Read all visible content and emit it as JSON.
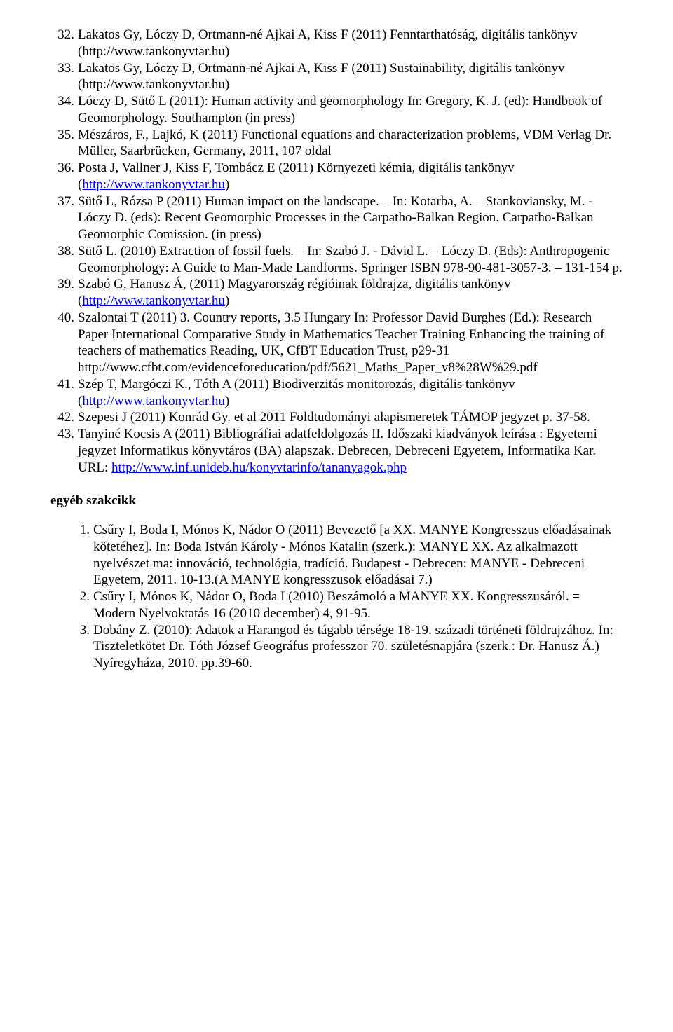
{
  "link_color": "#0000ee",
  "text_color": "#000000",
  "background_color": "#ffffff",
  "font_family": "Times New Roman",
  "base_font_size_pt": 14,
  "refs_main": [
    {
      "num": "32.",
      "segments": [
        {
          "t": "Lakatos Gy, Lóczy D, Ortmann-né Ajkai A, Kiss F (2011) Fenntarthatóság, digitális tankönyv (http://www.tankonyvtar.hu)"
        }
      ]
    },
    {
      "num": "33.",
      "segments": [
        {
          "t": "Lakatos Gy, Lóczy D, Ortmann-né Ajkai A, Kiss F (2011) Sustainability, digitális tankönyv (http://www.tankonyvtar.hu)"
        }
      ]
    },
    {
      "num": "34.",
      "segments": [
        {
          "t": "Lóczy D, Sütő L (2011): Human activity and geomorphology In: Gregory, K. J. (ed): Handbook of Geomorphology. Southampton (in press)"
        }
      ]
    },
    {
      "num": "35.",
      "segments": [
        {
          "t": "Mészáros, F., Lajkó, K (2011) Functional equations and characterization problems, VDM Verlag Dr. Müller, Saarbrücken, Germany, 2011, 107 oldal"
        }
      ]
    },
    {
      "num": "36.",
      "segments": [
        {
          "t": "Posta J, Vallner J, Kiss F, Tombácz E (2011) Környezeti kémia, digitális tankönyv ("
        },
        {
          "t": "http://www.tankonyvtar.hu",
          "link": true
        },
        {
          "t": ")"
        }
      ]
    },
    {
      "num": "37.",
      "segments": [
        {
          "t": "Sütő L, Rózsa P (2011) Human impact on the landscape. – In: Kotarba, A. – Stankoviansky, M. - Lóczy D. (eds): Recent Geomorphic Processes in the Carpatho-Balkan Region. Carpatho-Balkan Geomorphic Comission. (in press)"
        }
      ]
    },
    {
      "num": "38.",
      "segments": [
        {
          "t": "Sütő L. (2010) Extraction of fossil fuels. – In: Szabó J. - Dávid L. – Lóczy D. (Eds): Anthropogenic Geomorphology: A Guide to Man-Made Landforms. Springer ISBN 978-90-481-3057-3. – 131-154 p."
        }
      ]
    },
    {
      "num": "39.",
      "segments": [
        {
          "t": "Szabó G, Hanusz Á, (2011) Magyarország régióinak földrajza, digitális tankönyv ("
        },
        {
          "t": "http://www.tankonyvtar.hu",
          "link": true
        },
        {
          "t": ")"
        }
      ]
    },
    {
      "num": "40.",
      "segments": [
        {
          "t": "Szalontai T (2011) 3. Country reports, 3.5 Hungary In: Professor David Burghes (Ed.): Research Paper International Comparative Study in Mathematics Teacher Training Enhancing the training of teachers of mathematics Reading, UK, CfBT Education Trust, p29-31 http://www.cfbt.com/evidenceforeducation/pdf/5621_Maths_Paper_v8%28W%29.pdf"
        }
      ]
    },
    {
      "num": "41.",
      "segments": [
        {
          "t": "Szép T, Margóczi K., Tóth A (2011) Biodiverzitás monitorozás, digitális tankönyv ("
        },
        {
          "t": "http://www.tankonyvtar.hu",
          "link": true
        },
        {
          "t": ")"
        }
      ]
    },
    {
      "num": "42.",
      "segments": [
        {
          "t": "Szepesi J (2011) Konrád Gy. et al 2011 Földtudományi alapismeretek TÁMOP jegyzet p. 37-58."
        }
      ]
    },
    {
      "num": "43.",
      "segments": [
        {
          "t": "Tanyiné Kocsis A (2011) Bibliográfiai adatfeldolgozás II. Időszaki kiadványok leírása : Egyetemi jegyzet Informatikus könyvtáros (BA) alapszak. Debrecen, Debreceni Egyetem, Informatika Kar. URL: "
        },
        {
          "t": "http://www.inf.unideb.hu/konyvtarinfo/tananyagok.php",
          "link": true
        }
      ]
    }
  ],
  "section_heading": "egyéb szakcikk",
  "refs_secondary": [
    {
      "num": "1.",
      "segments": [
        {
          "t": "Csűry I, Boda I, Mónos K, Nádor O (2011) Bevezető [a XX. MANYE Kongresszus előadásainak kötetéhez]. In: Boda István Károly - Mónos Katalin (szerk.): MANYE XX. Az alkalmazott nyelvészet ma: innováció, technológia, tradíció. Budapest - Debrecen: MANYE - Debreceni Egyetem, 2011. 10-13.(A MANYE kongresszusok előadásai 7.)"
        }
      ]
    },
    {
      "num": "2.",
      "segments": [
        {
          "t": "Csűry I, Mónos K, Nádor O, Boda I (2010) Beszámoló a MANYE XX. Kongresszusáról. = Modern Nyelvoktatás 16 (2010 december) 4, 91-95."
        }
      ]
    },
    {
      "num": "3.",
      "segments": [
        {
          "t": "Dobány Z. (2010): Adatok a Harangod és tágabb térsége 18-19. századi történeti földrajzához. In: Tiszteletkötet Dr. Tóth József Geográfus professzor 70. születésnapjára (szerk.: Dr. Hanusz Á.) Nyíregyháza, 2010. pp.39-60."
        }
      ]
    }
  ]
}
